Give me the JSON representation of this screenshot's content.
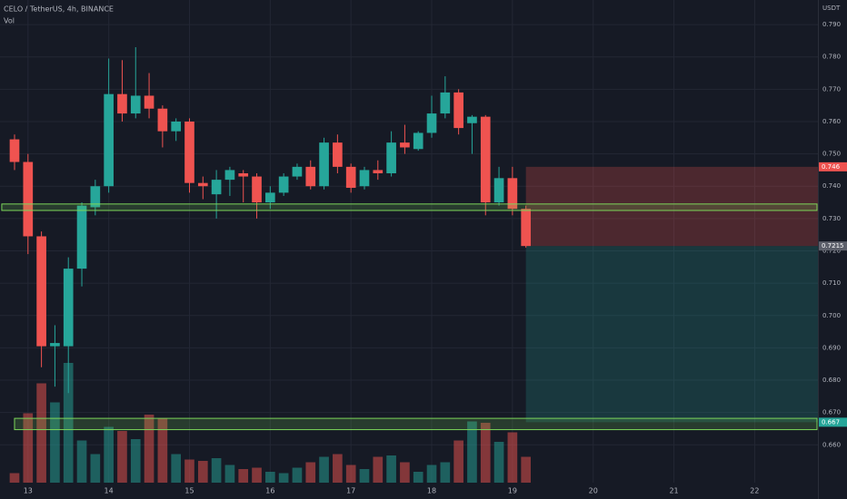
{
  "chart_data": {
    "type": "candlestick",
    "title": "CELO / TetherUS, 4h, BINANCE",
    "volume_label": "Vol",
    "axis_unit": "USDT",
    "up_color": "#26a69a",
    "down_color": "#ef5350",
    "open": [
      0.7545,
      0.7475,
      0.7245,
      0.6905,
      0.6905,
      0.7145,
      0.7335,
      0.74,
      0.7685,
      0.7625,
      0.768,
      0.764,
      0.757,
      0.76,
      0.741,
      0.7375,
      0.742,
      0.744,
      0.743,
      0.735,
      0.738,
      0.743,
      0.746,
      0.74,
      0.7535,
      0.746,
      0.74,
      0.745,
      0.744,
      0.7535,
      0.7515,
      0.7565,
      0.7625,
      0.769,
      0.7595,
      0.7615,
      0.735,
      0.7425,
      0.733
    ],
    "high": [
      0.756,
      0.75,
      0.726,
      0.697,
      0.718,
      0.735,
      0.742,
      0.7795,
      0.779,
      0.783,
      0.775,
      0.765,
      0.761,
      0.761,
      0.743,
      0.745,
      0.746,
      0.745,
      0.744,
      0.74,
      0.744,
      0.747,
      0.748,
      0.755,
      0.756,
      0.747,
      0.746,
      0.748,
      0.757,
      0.759,
      0.757,
      0.768,
      0.774,
      0.77,
      0.762,
      0.762,
      0.746,
      0.746,
      0.734
    ],
    "low": [
      0.745,
      0.719,
      0.684,
      0.678,
      0.676,
      0.709,
      0.731,
      0.738,
      0.76,
      0.761,
      0.761,
      0.752,
      0.754,
      0.738,
      0.736,
      0.73,
      0.737,
      0.735,
      0.73,
      0.733,
      0.737,
      0.742,
      0.739,
      0.739,
      0.744,
      0.738,
      0.739,
      0.742,
      0.743,
      0.75,
      0.751,
      0.755,
      0.761,
      0.756,
      0.75,
      0.731,
      0.734,
      0.731,
      0.721
    ],
    "close": [
      0.7475,
      0.7245,
      0.6905,
      0.6915,
      0.7145,
      0.734,
      0.74,
      0.7685,
      0.7625,
      0.768,
      0.764,
      0.757,
      0.76,
      0.741,
      0.74,
      0.742,
      0.745,
      0.743,
      0.735,
      0.738,
      0.743,
      0.746,
      0.74,
      0.7535,
      0.746,
      0.7395,
      0.745,
      0.744,
      0.7535,
      0.752,
      0.7565,
      0.7625,
      0.769,
      0.758,
      0.7615,
      0.735,
      0.7425,
      0.733,
      0.7215
    ],
    "volume": [
      7,
      51,
      73,
      59,
      88,
      31,
      21,
      41,
      38,
      32,
      50,
      47,
      21,
      17,
      16,
      18,
      13,
      10,
      11,
      8,
      7,
      11,
      15,
      19,
      21,
      13,
      10,
      19,
      20,
      15,
      8,
      13,
      15,
      31,
      45,
      44,
      30,
      37,
      19
    ],
    "vlim": [
      0,
      100
    ],
    "xlim": [
      -1.08,
      59.7
    ],
    "xticks": [
      {
        "value": 1,
        "label": "13"
      },
      {
        "value": 7,
        "label": "14"
      },
      {
        "value": 13,
        "label": "15"
      },
      {
        "value": 19,
        "label": "16"
      },
      {
        "value": 25,
        "label": "17"
      },
      {
        "value": 31,
        "label": "18"
      },
      {
        "value": 37,
        "label": "19"
      },
      {
        "value": 43,
        "label": "20"
      },
      {
        "value": 49,
        "label": "21"
      },
      {
        "value": 55,
        "label": "22"
      }
    ],
    "ylim": [
      0.6483,
      0.7976
    ],
    "yticks": [
      {
        "value": 0.66,
        "label": "0.660"
      },
      {
        "value": 0.67,
        "label": "0.670"
      },
      {
        "value": 0.68,
        "label": "0.680"
      },
      {
        "value": 0.69,
        "label": "0.690"
      },
      {
        "value": 0.7,
        "label": "0.700"
      },
      {
        "value": 0.71,
        "label": "0.710"
      },
      {
        "value": 0.72,
        "label": "0.720"
      },
      {
        "value": 0.73,
        "label": "0.730"
      },
      {
        "value": 0.74,
        "label": "0.740"
      },
      {
        "value": 0.75,
        "label": "0.750"
      },
      {
        "value": 0.76,
        "label": "0.760"
      },
      {
        "value": 0.77,
        "label": "0.770"
      },
      {
        "value": 0.78,
        "label": "0.780"
      },
      {
        "value": 0.79,
        "label": "0.790"
      }
    ],
    "grid": true,
    "zones": [
      {
        "low": 0.7325,
        "high": 0.7345,
        "from": -0.95,
        "color": "#7cd65a"
      },
      {
        "low": 0.6647,
        "high": 0.6682,
        "from": 0,
        "color": "#7cd65a"
      }
    ],
    "position": {
      "from": 38,
      "stop": 0.746,
      "entry": 0.7215,
      "target": 0.667
    }
  }
}
